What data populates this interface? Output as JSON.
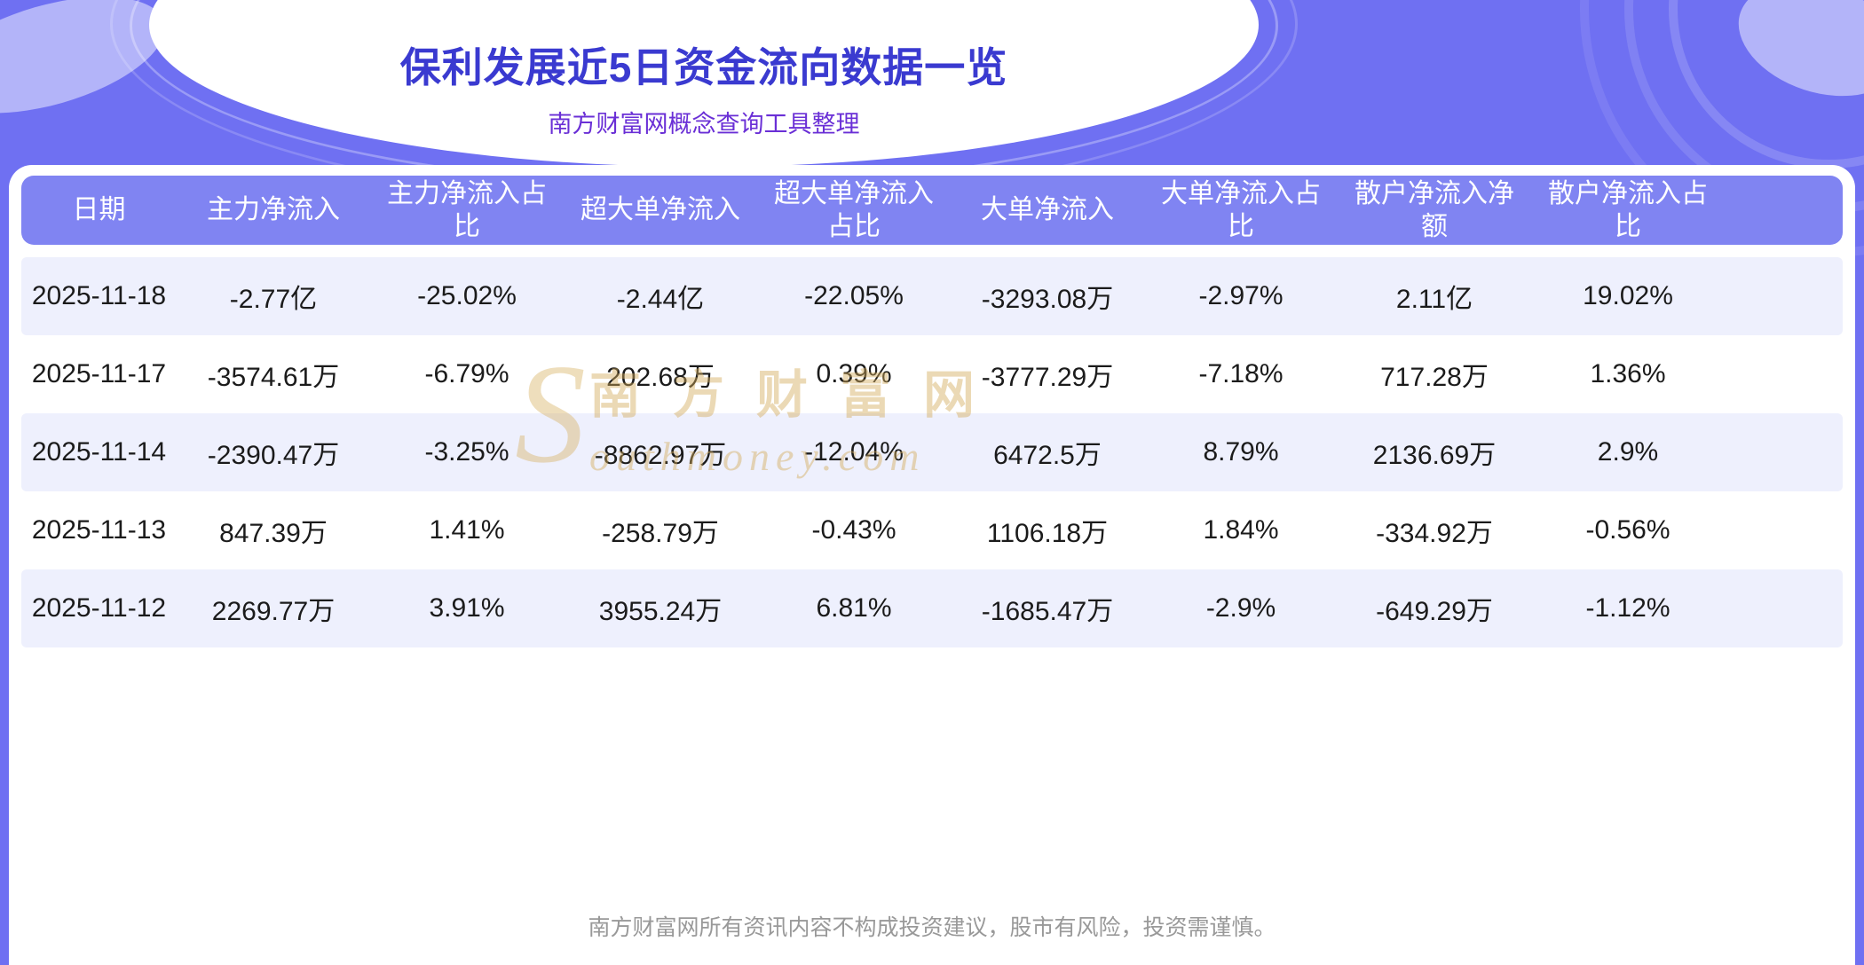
{
  "page": {
    "title": "保利发展近5日资金流向数据一览",
    "subtitle": "南方财富网概念查询工具整理",
    "footer": "南方财富网所有资讯内容不构成投资建议，股市有风险，投资需谨慎。"
  },
  "watermark": {
    "initial": "S",
    "line1": "南方财富网",
    "line2": "outhmoney.com"
  },
  "table": {
    "headers": [
      "日期",
      "主力净流入",
      "主力净流入占比",
      "超大单净流入",
      "超大单净流入占比",
      "大单净流入",
      "大单净流入占比",
      "散户净流入净额",
      "散户净流入占比"
    ],
    "rows": [
      [
        "2025-11-18",
        "-2.77亿",
        "-25.02%",
        "-2.44亿",
        "-22.05%",
        "-3293.08万",
        "-2.97%",
        "2.11亿",
        "19.02%"
      ],
      [
        "2025-11-17",
        "-3574.61万",
        "-6.79%",
        "202.68万",
        "0.39%",
        "-3777.29万",
        "-7.18%",
        "717.28万",
        "1.36%"
      ],
      [
        "2025-11-14",
        "-2390.47万",
        "-3.25%",
        "-8862.97万",
        "-12.04%",
        "6472.5万",
        "8.79%",
        "2136.69万",
        "2.9%"
      ],
      [
        "2025-11-13",
        "847.39万",
        "1.41%",
        "-258.79万",
        "-0.43%",
        "1106.18万",
        "1.84%",
        "-334.92万",
        "-0.56%"
      ],
      [
        "2025-11-12",
        "2269.77万",
        "3.91%",
        "3955.24万",
        "6.81%",
        "-1685.47万",
        "-2.9%",
        "-649.29万",
        "-1.12%"
      ]
    ]
  },
  "colors": {
    "background": "#6f70f2",
    "header_bg": "#8084f2",
    "row_alt": "#eef0fd",
    "title": "#3a3ad0",
    "subtitle": "#6a2fd6",
    "watermark": "#d2aa5a",
    "footer_text": "#999999"
  },
  "chart_data": {
    "type": "table",
    "title": "保利发展近5日资金流向数据一览",
    "subtitle": "南方财富网概念查询工具整理",
    "columns": [
      "日期",
      "主力净流入",
      "主力净流入占比",
      "超大单净流入",
      "超大单净流入占比",
      "大单净流入",
      "大单净流入占比",
      "散户净流入净额",
      "散户净流入占比"
    ],
    "rows": [
      [
        "2025-11-18",
        "-2.77亿",
        "-25.02%",
        "-2.44亿",
        "-22.05%",
        "-3293.08万",
        "-2.97%",
        "2.11亿",
        "19.02%"
      ],
      [
        "2025-11-17",
        "-3574.61万",
        "-6.79%",
        "202.68万",
        "0.39%",
        "-3777.29万",
        "-7.18%",
        "717.28万",
        "1.36%"
      ],
      [
        "2025-11-14",
        "-2390.47万",
        "-3.25%",
        "-8862.97万",
        "-12.04%",
        "6472.5万",
        "8.79%",
        "2136.69万",
        "2.9%"
      ],
      [
        "2025-11-13",
        "847.39万",
        "1.41%",
        "-258.79万",
        "-0.43%",
        "1106.18万",
        "1.84%",
        "-334.92万",
        "-0.56%"
      ],
      [
        "2025-11-12",
        "2269.77万",
        "3.91%",
        "3955.24万",
        "6.81%",
        "-1685.47万",
        "-2.9%",
        "-649.29万",
        "-1.12%"
      ]
    ]
  }
}
